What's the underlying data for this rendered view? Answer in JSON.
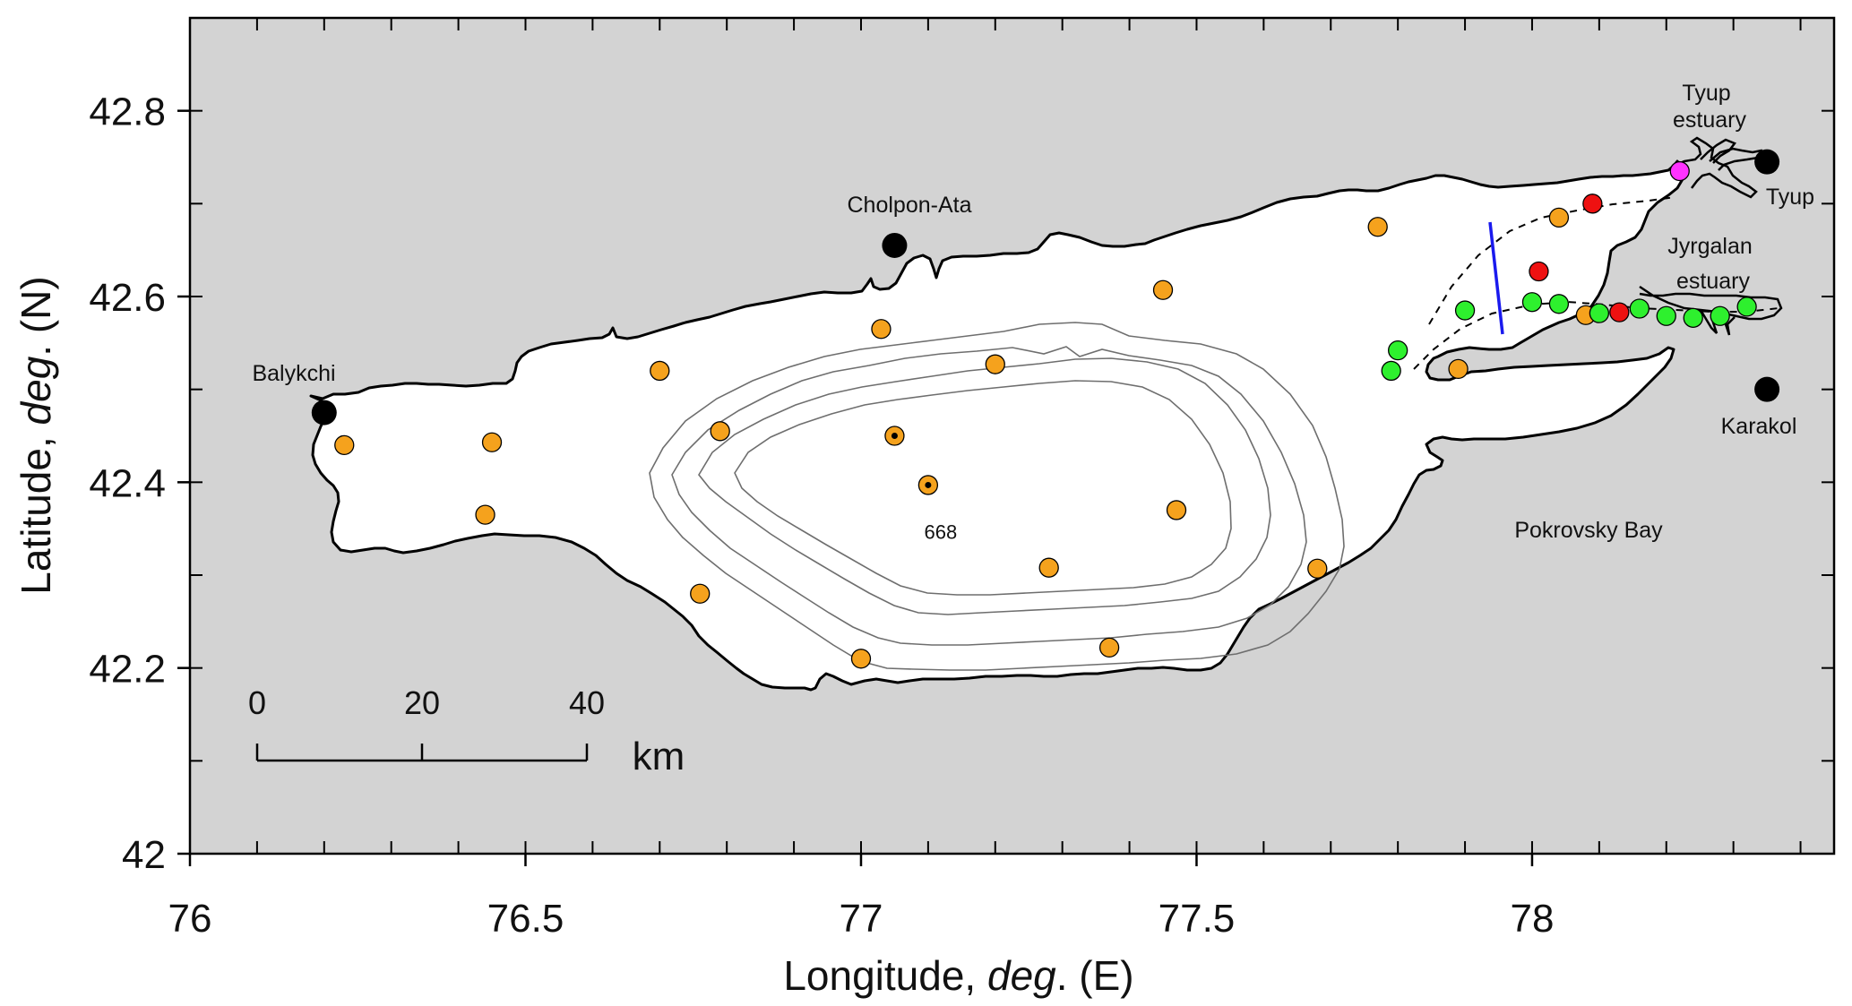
{
  "axes": {
    "x_label_prefix": "Longitude, ",
    "x_label_italic": "deg",
    "x_label_suffix": ". (E)",
    "y_label_prefix": "Latitude, ",
    "y_label_italic": "deg",
    "y_label_suffix": ". (N)",
    "x_range": [
      76,
      78.45
    ],
    "y_range": [
      42,
      42.9
    ],
    "x_ticks": [
      {
        "value": 76,
        "label": "76"
      },
      {
        "value": 76.5,
        "label": "76.5"
      },
      {
        "value": 77,
        "label": "77"
      },
      {
        "value": 77.5,
        "label": "77.5"
      },
      {
        "value": 78,
        "label": "78"
      }
    ],
    "y_ticks": [
      {
        "value": 42,
        "label": "42"
      },
      {
        "value": 42.2,
        "label": "42.2"
      },
      {
        "value": 42.4,
        "label": "42.4"
      },
      {
        "value": 42.6,
        "label": "42.6"
      },
      {
        "value": 42.8,
        "label": "42.8"
      }
    ]
  },
  "colors": {
    "land": "#d3d3d3",
    "lake": "#ffffff",
    "shoreline": "#000000",
    "contour": "#6e6e6e",
    "orange_station": "#f5a21d",
    "green_station": "#2ef02e",
    "red_station": "#ee1111",
    "magenta_station": "#ff33ff",
    "town": "#000000",
    "transect": "#1a1aee"
  },
  "towns": [
    {
      "name": "Balykchi",
      "lon": 76.2,
      "lat": 42.475
    },
    {
      "name": "Cholpon-Ata",
      "lon": 77.05,
      "lat": 42.655
    },
    {
      "name": "Karakol",
      "lon": 78.35,
      "lat": 42.5
    },
    {
      "name": "Tyup",
      "lon": 78.35,
      "lat": 42.745
    }
  ],
  "place_labels": [
    {
      "id": "tyup-estuary",
      "lines": [
        "Tyup",
        "estuary"
      ]
    },
    {
      "id": "jyrgalan-estuary",
      "lines": [
        "Jyrgalan",
        "estuary"
      ]
    },
    {
      "id": "pokrovsky-bay",
      "lines": [
        "Pokrovsky Bay"
      ]
    }
  ],
  "stations": {
    "orange": [
      {
        "lon": 76.23,
        "lat": 42.44
      },
      {
        "lon": 76.45,
        "lat": 42.443
      },
      {
        "lon": 76.44,
        "lat": 42.365
      },
      {
        "lon": 76.7,
        "lat": 42.52
      },
      {
        "lon": 76.79,
        "lat": 42.455
      },
      {
        "lon": 76.76,
        "lat": 42.28
      },
      {
        "lon": 77.0,
        "lat": 42.21
      },
      {
        "lon": 77.03,
        "lat": 42.565
      },
      {
        "lon": 77.2,
        "lat": 42.527
      },
      {
        "lon": 77.05,
        "lat": 42.45,
        "marked": true
      },
      {
        "lon": 77.1,
        "lat": 42.397,
        "marked": true,
        "label": "668"
      },
      {
        "lon": 77.28,
        "lat": 42.308
      },
      {
        "lon": 77.37,
        "lat": 42.222
      },
      {
        "lon": 77.47,
        "lat": 42.37
      },
      {
        "lon": 77.45,
        "lat": 42.607
      },
      {
        "lon": 77.68,
        "lat": 42.307
      },
      {
        "lon": 77.77,
        "lat": 42.675
      },
      {
        "lon": 77.89,
        "lat": 42.522
      },
      {
        "lon": 78.04,
        "lat": 42.685
      },
      {
        "lon": 78.08,
        "lat": 42.58
      }
    ],
    "green": [
      {
        "lon": 77.79,
        "lat": 42.52
      },
      {
        "lon": 77.8,
        "lat": 42.542
      },
      {
        "lon": 77.9,
        "lat": 42.585
      },
      {
        "lon": 78.0,
        "lat": 42.594
      },
      {
        "lon": 78.04,
        "lat": 42.592
      },
      {
        "lon": 78.1,
        "lat": 42.582
      },
      {
        "lon": 78.16,
        "lat": 42.587
      },
      {
        "lon": 78.2,
        "lat": 42.579
      },
      {
        "lon": 78.24,
        "lat": 42.577
      },
      {
        "lon": 78.28,
        "lat": 42.579
      },
      {
        "lon": 78.32,
        "lat": 42.589
      }
    ],
    "red": [
      {
        "lon": 78.09,
        "lat": 42.7
      },
      {
        "lon": 78.01,
        "lat": 42.627
      },
      {
        "lon": 78.13,
        "lat": 42.583
      }
    ],
    "magenta": [
      {
        "lon": 78.22,
        "lat": 42.735
      }
    ]
  },
  "scale_bar": {
    "labels": [
      "0",
      "20",
      "40"
    ],
    "unit": "km"
  }
}
